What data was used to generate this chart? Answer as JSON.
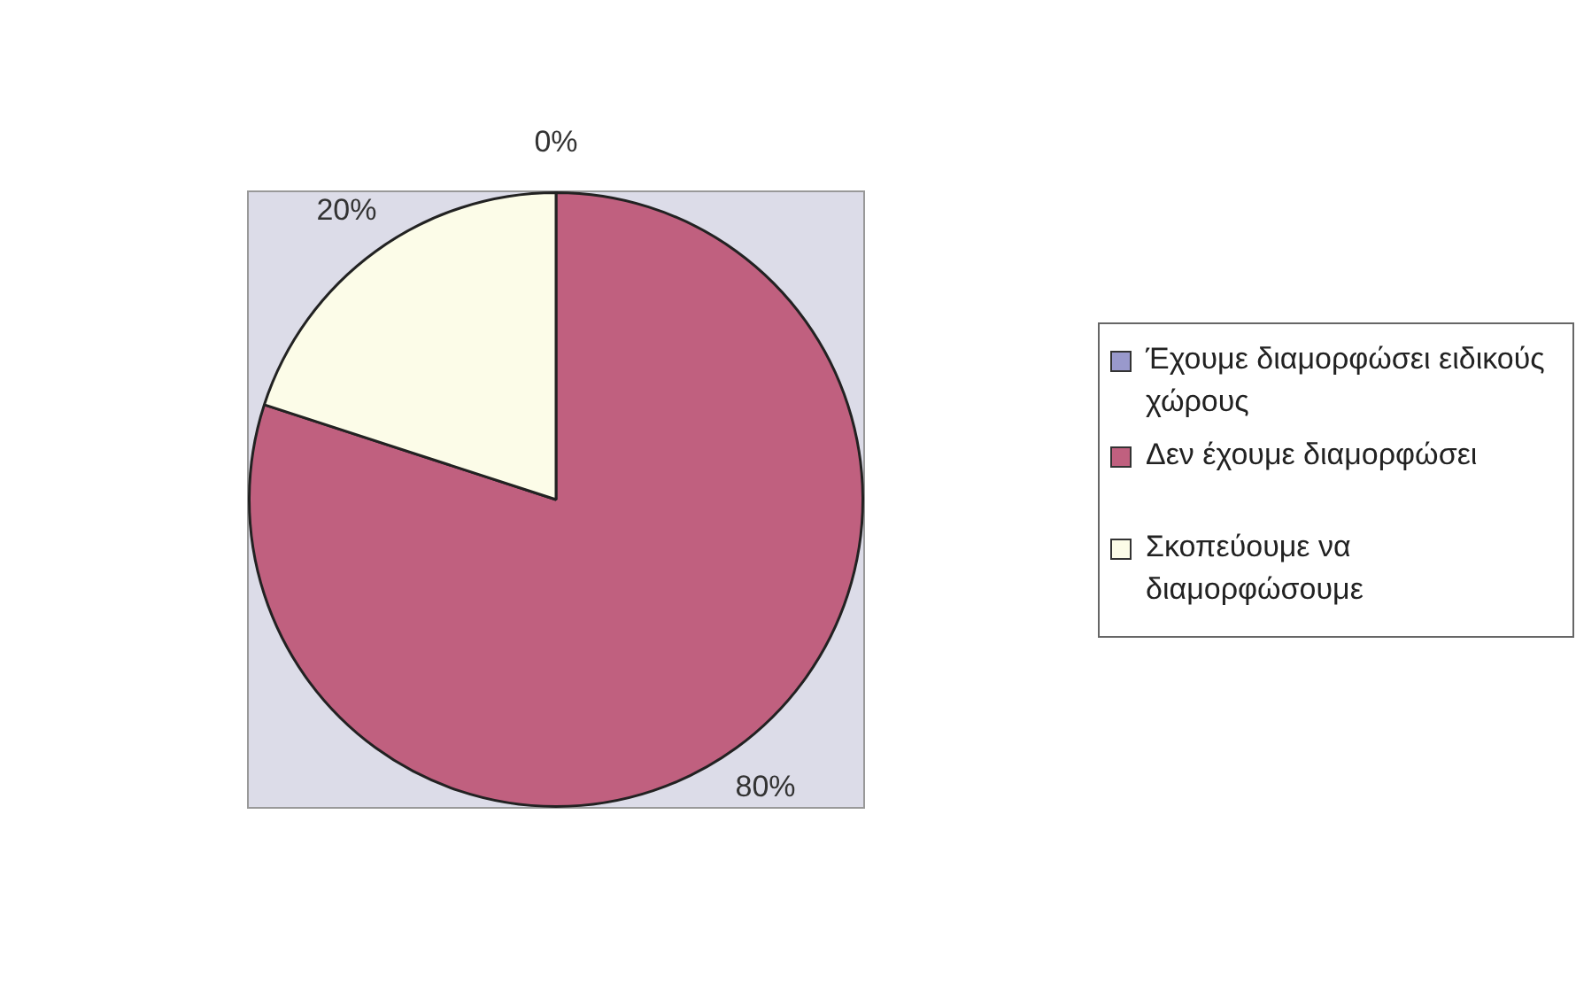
{
  "chart_data": {
    "type": "pie",
    "categories": [
      "Έχουμε διαμορφώσει ειδικούς χώρους",
      "Δεν έχουμε διαμορφώσει",
      "Σκοπεύουμε να διαμορφώσουμε"
    ],
    "values": [
      0,
      80,
      20
    ],
    "colors": [
      "#9999cc",
      "#c0607f",
      "#fcfce8"
    ],
    "value_labels": [
      "0%",
      "80%",
      "20%"
    ],
    "legend": "right"
  }
}
